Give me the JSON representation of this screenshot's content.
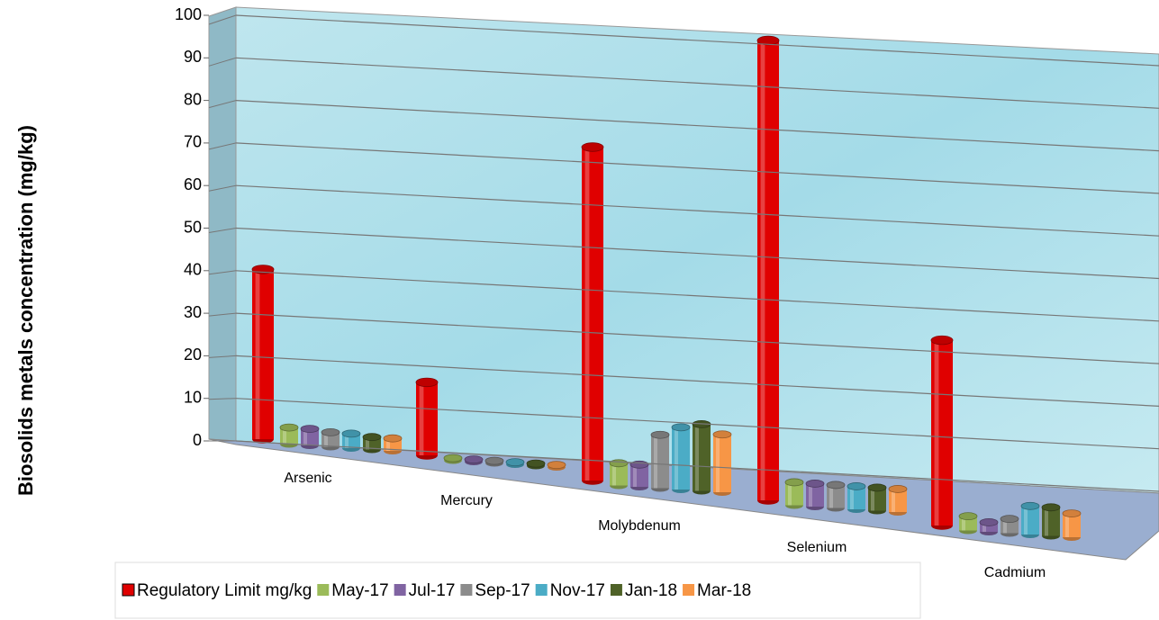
{
  "chart_data": {
    "type": "bar3d",
    "y_label": "Biosolids metals concentration (mg/kg)",
    "categories": [
      "Arsenic",
      "Mercury",
      "Molybdenum",
      "Selenium",
      "Cadmium"
    ],
    "ylim": [
      0,
      100
    ],
    "yticks": [
      0,
      10,
      20,
      30,
      40,
      50,
      60,
      70,
      80,
      90,
      100
    ],
    "grid": true,
    "series": [
      {
        "name": "Regulatory Limit mg/kg",
        "color": "#e00000",
        "values": [
          41,
          17,
          75,
          100,
          39
        ]
      },
      {
        "name": "May-17",
        "color": "#9bbb59",
        "values": [
          4,
          0.5,
          5,
          5,
          3
        ]
      },
      {
        "name": "Jul-17",
        "color": "#8064a2",
        "values": [
          4,
          0.5,
          5,
          5,
          2
        ]
      },
      {
        "name": "Sep-17",
        "color": "#8c8c8c",
        "values": [
          3.5,
          0.5,
          12,
          5,
          3
        ]
      },
      {
        "name": "Nov-17",
        "color": "#4bacc6",
        "values": [
          3.5,
          0.5,
          14,
          5,
          6
        ]
      },
      {
        "name": "Jan-18",
        "color": "#4f6228",
        "values": [
          3,
          0.5,
          15,
          5,
          6
        ]
      },
      {
        "name": "Mar-18",
        "color": "#f79646",
        "values": [
          3,
          0.5,
          13,
          5,
          5
        ]
      }
    ]
  }
}
